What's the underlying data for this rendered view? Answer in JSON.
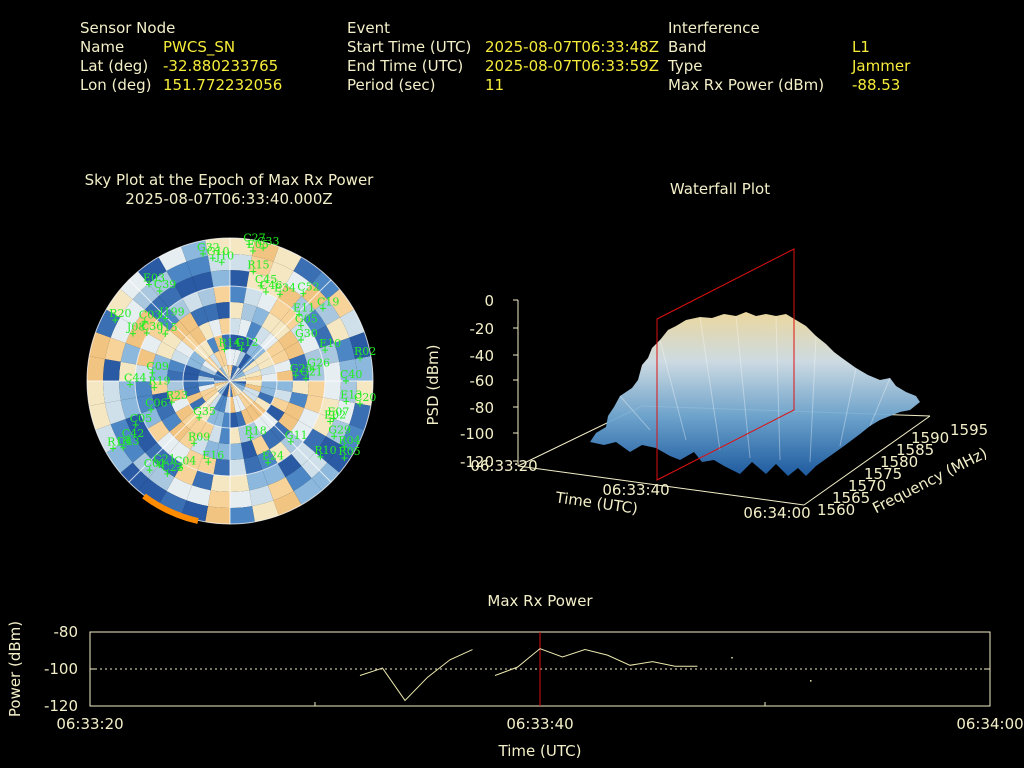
{
  "header": {
    "sensor": {
      "title": "Sensor Node",
      "rows": [
        {
          "label": "Name",
          "value": "PWCS_SN"
        },
        {
          "label": "Lat (deg)",
          "value": "-32.880233765"
        },
        {
          "label": "Lon (deg)",
          "value": "151.772232056"
        }
      ]
    },
    "event": {
      "title": "Event",
      "rows": [
        {
          "label": "Start Time (UTC)",
          "value": "2025-08-07T06:33:48Z"
        },
        {
          "label": "End Time (UTC)",
          "value": "2025-08-07T06:33:59Z"
        },
        {
          "label": "Period (sec)",
          "value": "11"
        }
      ]
    },
    "interference": {
      "title": "Interference",
      "rows": [
        {
          "label": "Band",
          "value": "L1"
        },
        {
          "label": "Type",
          "value": "Jammer"
        },
        {
          "label": "Max Rx Power (dBm)",
          "value": "-88.53"
        }
      ]
    }
  },
  "skyplot": {
    "title": "Sky Plot at the Epoch of Max Rx Power",
    "subtitle": "2025-08-07T06:33:40.000Z",
    "satellites": [
      {
        "name": "C27"
      },
      {
        "name": "C33"
      },
      {
        "name": "E05"
      },
      {
        "name": "G32"
      },
      {
        "name": "G10"
      },
      {
        "name": "J10"
      },
      {
        "name": "R15"
      },
      {
        "name": "C45"
      },
      {
        "name": "C52"
      },
      {
        "name": "C46"
      },
      {
        "name": "E34"
      },
      {
        "name": "C19"
      },
      {
        "name": "E11"
      },
      {
        "name": "G05"
      },
      {
        "name": "G30"
      },
      {
        "name": "E03"
      },
      {
        "name": "C39"
      },
      {
        "name": "R20"
      },
      {
        "name": "J199"
      },
      {
        "name": "C03"
      },
      {
        "name": "C36"
      },
      {
        "name": "R02"
      },
      {
        "name": "J08"
      },
      {
        "name": "J15"
      },
      {
        "name": "R14"
      },
      {
        "name": "G12"
      },
      {
        "name": "E10"
      },
      {
        "name": "C40"
      },
      {
        "name": "C09"
      },
      {
        "name": "G25"
      },
      {
        "name": "C44"
      },
      {
        "name": "G26"
      },
      {
        "name": "G21"
      },
      {
        "name": "R19"
      },
      {
        "name": "C06"
      },
      {
        "name": "E13"
      },
      {
        "name": "R23"
      },
      {
        "name": "G35"
      },
      {
        "name": "C20"
      },
      {
        "name": "C05"
      },
      {
        "name": "C42"
      },
      {
        "name": "E07"
      },
      {
        "name": "R18"
      },
      {
        "name": "R09"
      },
      {
        "name": "G11"
      },
      {
        "name": "E24"
      },
      {
        "name": "C21"
      },
      {
        "name": "C04"
      },
      {
        "name": "E16"
      },
      {
        "name": "R10"
      },
      {
        "name": "R05"
      },
      {
        "name": "G29"
      },
      {
        "name": "E02"
      },
      {
        "name": "R16"
      },
      {
        "name": "R04"
      },
      {
        "name": "C23"
      },
      {
        "name": "C01"
      },
      {
        "name": "C43"
      }
    ]
  },
  "waterfall": {
    "title": "Waterfall Plot",
    "z_label": "PSD (dBm)",
    "z_ticks": [
      "0",
      "-20",
      "-40",
      "-60",
      "-80",
      "-100",
      "-120"
    ],
    "time_label": "Time (UTC)",
    "time_ticks": [
      "06:33:20",
      "06:33:40",
      "06:34:00"
    ],
    "freq_label": "Frequency (MHz)",
    "freq_ticks": [
      "1560",
      "1565",
      "1570",
      "1575",
      "1580",
      "1585",
      "1590",
      "1595"
    ]
  },
  "chart_data": {
    "type": "line",
    "title": "Max Rx Power",
    "xlabel": "Time (UTC)",
    "ylabel": "Power (dBm)",
    "x_tick_labels": [
      "06:33:20",
      "06:33:40",
      "06:34:00"
    ],
    "y_tick_labels": [
      "-80",
      "-100",
      "-120"
    ],
    "xlim_sec": [
      0,
      40
    ],
    "ylim": [
      -120,
      -80
    ],
    "threshold_dbm": -100,
    "max_epoch_sec": 20,
    "series": [
      {
        "x": [
          12.0,
          13.0,
          14.0,
          15.0,
          16.0,
          17.0
        ],
        "y": [
          -103.5,
          -99.5,
          -117.0,
          -104.5,
          -95.0,
          -89.5
        ]
      },
      {
        "x": [
          18.0,
          19.0,
          20.0,
          21.0,
          22.0,
          23.0,
          24.0,
          25.0,
          26.0,
          27.0
        ],
        "y": [
          -103.5,
          -99.0,
          -89.0,
          -93.5,
          -89.5,
          -92.5,
          -98.0,
          -96.0,
          -98.5,
          -98.5
        ]
      }
    ],
    "isolated_points": [
      {
        "x": 28.5,
        "y": -93.5
      },
      {
        "x": 32.0,
        "y": -106.0
      }
    ]
  },
  "colors": {
    "label": "#f3efc8",
    "value": "#f6ec3a",
    "sat_green": "#22ee22",
    "marker_red": "#dd1111",
    "line_yellow": "#ede9b0",
    "orange": "#ff8c00"
  }
}
